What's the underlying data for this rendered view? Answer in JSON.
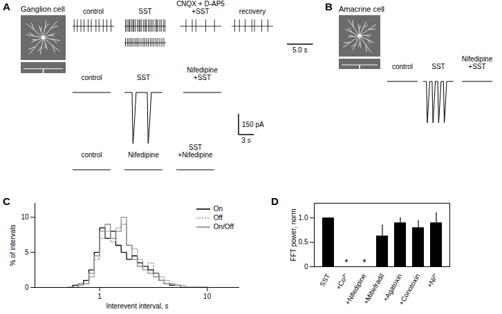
{
  "panels": [
    {
      "panel_label": "A",
      "image_label": "Ganglion cell",
      "rows": [
        {
          "traces": [
            {
              "label": "control",
              "duration": 8,
              "spikes": [
                0.3,
                0.9,
                1.6,
                2.2,
                3.0,
                3.6,
                4.5,
                5.1,
                5.9,
                6.6,
                7.4
              ]
            },
            {
              "label": "SST",
              "duration": 8,
              "spikes": [
                0.2,
                0.5,
                0.8,
                1.0,
                1.3,
                1.6,
                1.8,
                2.1,
                2.5,
                2.8,
                3.0,
                3.3,
                3.7,
                4.0,
                4.2,
                4.6,
                4.9,
                5.2,
                5.5,
                5.9,
                6.2,
                6.4,
                6.8,
                7.1,
                7.5,
                7.8
              ],
              "inset": {
                "duration": 2,
                "spikes": [
                  0.05,
                  0.14,
                  0.22,
                  0.3,
                  0.37,
                  0.46,
                  0.55,
                  0.62,
                  0.7,
                  0.8,
                  0.9,
                  0.98,
                  1.07,
                  1.15,
                  1.25,
                  1.33,
                  1.42,
                  1.52,
                  1.6,
                  1.7,
                  1.8,
                  1.9
                ]
              }
            },
            {
              "label": "CNQX + D-AP5 +SST",
              "duration": 8,
              "spikes": [
                1.2,
                2.4,
                3.1,
                5.0,
                6.7
              ]
            },
            {
              "label": "recovery",
              "duration": 8,
              "spikes": [
                0.6,
                1.5,
                2.6,
                3.9,
                4.4,
                5.8,
                7.0
              ]
            }
          ],
          "time_bar": {
            "value": 5,
            "label": "5.0 s"
          }
        },
        {
          "traces": [
            {
              "label": "control",
              "duration": 7.5,
              "events": []
            },
            {
              "label": "SST",
              "duration": 7.5,
              "events": [
                1.5,
                4.5
              ],
              "amplitude": 370
            },
            {
              "label": "Nifedipine +SST",
              "duration": 7.5,
              "events": []
            }
          ],
          "current_bar": {
            "value": 150,
            "label": "150 pA"
          },
          "time_bar": {
            "value": 3,
            "label": "3 s"
          }
        },
        {
          "traces": [
            {
              "label": "control",
              "duration": 7.5,
              "events": []
            },
            {
              "label": "Nifedipine",
              "duration": 7.5,
              "events": []
            },
            {
              "label": "SST +Nifedipine",
              "duration": 7.5,
              "events": []
            }
          ]
        }
      ]
    },
    {
      "panel_label": "B",
      "image_label": "Amacrine cell",
      "rows": [
        {
          "traces": [
            {
              "label": "control",
              "duration": 7.5,
              "events": []
            },
            {
              "label": "SST",
              "duration": 7.5,
              "events": [
                0.8,
                2.2,
                3.6,
                5.0
              ],
              "amplitude": 300
            },
            {
              "label": "Nifedipine +SST",
              "duration": 7.5,
              "events": []
            }
          ]
        }
      ]
    }
  ],
  "chart_data": [
    {
      "panel_label": "C",
      "type": "histogram",
      "x_label": "Interevent interval, s",
      "y_label": "% of intervals",
      "bins": [
        0.501,
        0.562,
        0.631,
        0.708,
        0.794,
        0.891,
        1,
        1.122,
        1.259,
        1.413,
        1.585,
        1.778,
        1.995,
        2.239,
        2.512,
        2.818,
        3.162,
        3.548,
        3.981,
        4.467,
        5.012,
        5.623,
        6.31,
        7.079,
        7.943,
        8.913,
        10
      ],
      "series": [
        {
          "name": "On",
          "color": "#000000",
          "line_style": "solid",
          "values": [
            0,
            0.3,
            0.5,
            1,
            2.5,
            5,
            8.5,
            7,
            8,
            6,
            5,
            4,
            4.5,
            3.5,
            3,
            2.5,
            2,
            1,
            0.5,
            0.3,
            0.3,
            0,
            0,
            0,
            0,
            0
          ]
        },
        {
          "name": "Off",
          "color": "#999999",
          "line_style": "dotted",
          "values": [
            0,
            0,
            0.5,
            0.5,
            1.5,
            4,
            7,
            8,
            6.5,
            8.5,
            9,
            6,
            5.5,
            4,
            3,
            3.5,
            2,
            1.5,
            1,
            0.5,
            0.3,
            0.3,
            0,
            0,
            0,
            0
          ]
        },
        {
          "name": "On/Off",
          "color": "#8c8c8c",
          "line_style": "solid",
          "values": [
            0,
            0,
            0.3,
            0.5,
            2,
            4.5,
            8,
            9,
            7,
            8,
            10,
            6,
            4,
            3,
            2.5,
            2,
            1.5,
            1,
            0.5,
            0.5,
            0.3,
            0,
            0,
            0,
            0,
            0
          ]
        }
      ],
      "xlim": [
        0.25,
        20
      ],
      "ylim": [
        0,
        12
      ],
      "xticks": [
        1,
        10
      ],
      "yticks": [
        0,
        5,
        10
      ],
      "log": "x",
      "grid": false,
      "legend": "upper right"
    },
    {
      "panel_label": "D",
      "type": "bar",
      "y_label": "FFT power, norm",
      "categories": [
        "SST",
        "+Co²⁺",
        "+Nifedipine",
        "+Mibefradil",
        "+Agatoxin",
        "+Conotoxin",
        "+Ni²⁺"
      ],
      "values": [
        1,
        0,
        0,
        0.63,
        0.9,
        0.8,
        0.9
      ],
      "error": [
        0,
        0,
        0,
        0.22,
        0.1,
        0.14,
        0.2
      ],
      "color": "#000000",
      "ylim": [
        0,
        1.3
      ],
      "yticks": [
        0,
        0.5,
        {
          "value": 1,
          "label": "1.0"
        }
      ],
      "annotations": [
        {
          "category": "+Co²⁺",
          "text": "*"
        },
        {
          "category": "+Nifedipine",
          "text": "*"
        }
      ],
      "grid": false
    }
  ]
}
